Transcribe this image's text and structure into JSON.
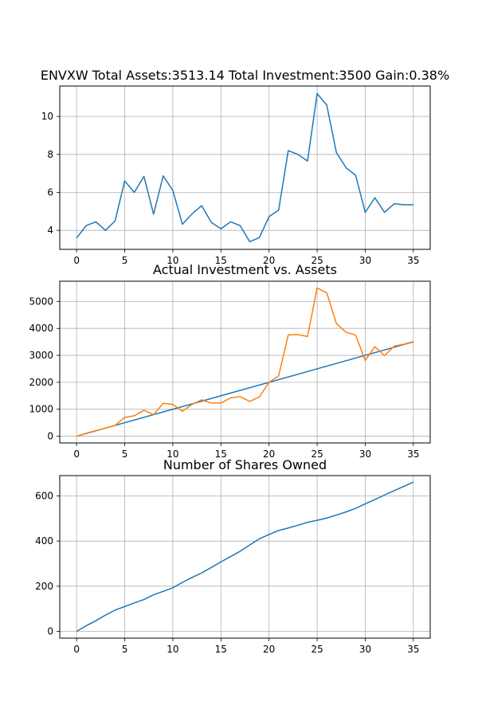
{
  "chart_data": [
    {
      "type": "line",
      "title": "ENVXW Total Assets:3513.14  Total Investment:3500  Gain:0.38%",
      "xlabel": "",
      "ylabel": "",
      "xlim": [
        -1.75,
        36.75
      ],
      "ylim": [
        3.0,
        11.6
      ],
      "xticks": [
        0,
        5,
        10,
        15,
        20,
        25,
        30,
        35
      ],
      "yticks": [
        4,
        6,
        8,
        10
      ],
      "grid": true,
      "series": [
        {
          "color": "#1f77b4",
          "x": [
            0,
            1,
            2,
            3,
            4,
            5,
            6,
            7,
            8,
            9,
            10,
            11,
            12,
            13,
            14,
            15,
            16,
            17,
            18,
            19,
            20,
            21,
            22,
            23,
            24,
            25,
            26,
            27,
            28,
            29,
            30,
            31,
            32,
            33,
            34,
            35
          ],
          "values": [
            3.6,
            4.25,
            4.45,
            4.0,
            4.5,
            6.6,
            6.0,
            6.85,
            4.85,
            6.87,
            6.1,
            4.32,
            4.87,
            5.3,
            4.42,
            4.08,
            4.45,
            4.25,
            3.4,
            3.62,
            4.72,
            5.07,
            8.2,
            8.0,
            7.65,
            11.2,
            10.6,
            8.1,
            7.3,
            6.9,
            4.95,
            5.72,
            4.95,
            5.4,
            5.35,
            5.35
          ]
        }
      ]
    },
    {
      "type": "line",
      "title": "Actual Investment vs. Assets",
      "xlabel": "",
      "ylabel": "",
      "xlim": [
        -1.75,
        36.75
      ],
      "ylim": [
        -250,
        5750
      ],
      "xticks": [
        0,
        5,
        10,
        15,
        20,
        25,
        30,
        35
      ],
      "yticks": [
        0,
        1000,
        2000,
        3000,
        4000,
        5000
      ],
      "grid": true,
      "series": [
        {
          "color": "#1f77b4",
          "x": [
            0,
            35
          ],
          "values": [
            0,
            3500
          ]
        },
        {
          "color": "#ff7f0e",
          "x": [
            0,
            1,
            2,
            3,
            4,
            5,
            6,
            7,
            8,
            9,
            10,
            11,
            12,
            13,
            14,
            15,
            16,
            17,
            18,
            19,
            20,
            21,
            22,
            23,
            24,
            25,
            26,
            27,
            28,
            29,
            30,
            31,
            32,
            33,
            34,
            35
          ],
          "values": [
            0,
            110,
            210,
            300,
            400,
            700,
            760,
            960,
            800,
            1220,
            1180,
            930,
            1180,
            1350,
            1230,
            1230,
            1420,
            1470,
            1290,
            1460,
            2000,
            2240,
            3760,
            3770,
            3700,
            5500,
            5320,
            4180,
            3860,
            3750,
            2810,
            3320,
            2990,
            3340,
            3410,
            3510
          ]
        }
      ]
    },
    {
      "type": "line",
      "title": "Number of Shares Owned",
      "xlabel": "",
      "ylabel": "",
      "xlim": [
        -1.75,
        36.75
      ],
      "ylim": [
        -30,
        690
      ],
      "xticks": [
        0,
        5,
        10,
        15,
        20,
        25,
        30,
        35
      ],
      "yticks": [
        0,
        200,
        400,
        600
      ],
      "grid": true,
      "series": [
        {
          "color": "#1f77b4",
          "x": [
            0,
            1,
            2,
            3,
            4,
            5,
            6,
            7,
            8,
            9,
            10,
            11,
            12,
            13,
            14,
            15,
            16,
            17,
            18,
            19,
            20,
            21,
            22,
            23,
            24,
            25,
            26,
            27,
            28,
            29,
            30,
            31,
            32,
            33,
            34,
            35
          ],
          "values": [
            0,
            25,
            47,
            72,
            94,
            110,
            126,
            141,
            162,
            177,
            193,
            217,
            239,
            259,
            283,
            308,
            331,
            355,
            383,
            410,
            429,
            447,
            458,
            470,
            483,
            492,
            502,
            515,
            529,
            545,
            565,
            584,
            604,
            623,
            642,
            661
          ]
        }
      ]
    }
  ]
}
